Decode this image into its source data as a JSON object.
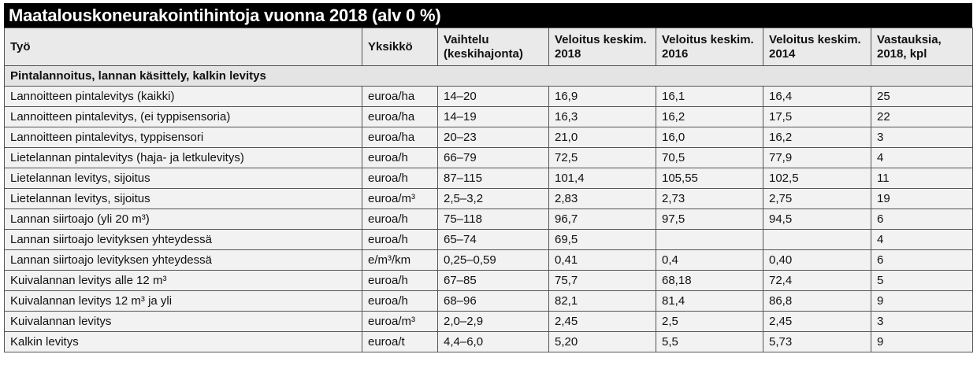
{
  "title": "Maatalouskoneurakointihintoja vuonna 2018 (alv 0 %)",
  "headers": [
    "Työ",
    "Yksikkö",
    "Vaihtelu (keskihajonta)",
    "Veloitus keskim. 2018",
    "Veloitus keskim. 2016",
    "Veloitus keskim. 2014",
    "Vastauksia, 2018, kpl"
  ],
  "section": "Pintalannoitus, lannan käsittely, kalkin levitys",
  "rows": [
    [
      "Lannoitteen pintalevitys (kaikki)",
      "euroa/ha",
      "14–20",
      "16,9",
      "16,1",
      "16,4",
      "25"
    ],
    [
      "Lannoitteen pintalevitys, (ei typpisensoria)",
      "euroa/ha",
      "14–19",
      "16,3",
      "16,2",
      "17,5",
      "22"
    ],
    [
      "Lannoitteen pintalevitys, typpisensori",
      "euroa/ha",
      "20–23",
      "21,0",
      "16,0",
      "16,2",
      "3"
    ],
    [
      "Lietelannan pintalevitys (haja- ja letkulevitys)",
      "euroa/h",
      "66–79",
      "72,5",
      "70,5",
      "77,9",
      "4"
    ],
    [
      "Lietelannan levitys, sijoitus",
      "euroa/h",
      "87–115",
      "101,4",
      "105,55",
      "102,5",
      "11"
    ],
    [
      "Lietelannan levitys, sijoitus",
      "euroa/m³",
      "2,5–3,2",
      "2,83",
      "2,73",
      "2,75",
      "19"
    ],
    [
      "Lannan siirtoajo (yli 20 m³)",
      "euroa/h",
      "75–118",
      "96,7",
      "97,5",
      "94,5",
      "6"
    ],
    [
      "Lannan siirtoajo levityksen yhteydessä",
      "euroa/h",
      "65–74",
      "69,5",
      "",
      "",
      "4"
    ],
    [
      "Lannan siirtoajo levityksen yhteydessä",
      "e/m³/km",
      "0,25–0,59",
      "0,41",
      "0,4",
      "0,40",
      "6"
    ],
    [
      "Kuivalannan levitys alle 12 m³",
      "euroa/h",
      "67–85",
      "75,7",
      "68,18",
      "72,4",
      "5"
    ],
    [
      "Kuivalannan levitys 12 m³ ja yli",
      "euroa/h",
      "68–96",
      "82,1",
      "81,4",
      "86,8",
      "9"
    ],
    [
      "Kuivalannan levitys",
      "euroa/m³",
      "2,0–2,9",
      "2,45",
      "2,5",
      "2,45",
      "3"
    ],
    [
      "Kalkin levitys",
      "euroa/t",
      "4,4–6,0",
      "5,20",
      "5,5",
      "5,73",
      "9"
    ]
  ]
}
